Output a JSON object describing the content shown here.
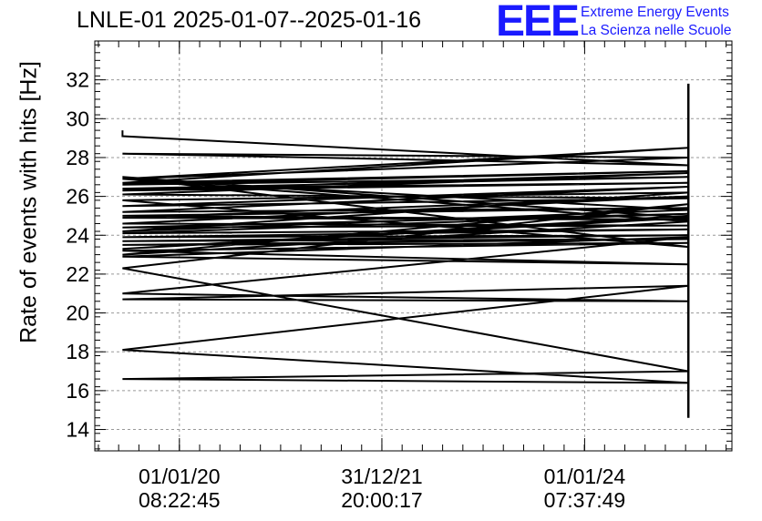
{
  "header": {
    "title": "LNLE-01 2025-01-07--2025-01-16",
    "logo_text": "EEE",
    "org_line1": "Extreme Energy Events",
    "org_line2": "La Scienza nelle Scuole",
    "accent_color": "#1a1aff"
  },
  "chart_data": {
    "type": "line",
    "title": "LNLE-01 2025-01-07--2025-01-16",
    "xlabel": "",
    "ylabel": "Rate of events with hits [Hz]",
    "ylim": [
      12.9,
      34
    ],
    "yticks": [
      14,
      16,
      18,
      20,
      22,
      24,
      26,
      28,
      30,
      32
    ],
    "xticks": [
      {
        "date": "01/01/20",
        "time": "08:22:45"
      },
      {
        "date": "31/12/21",
        "time": "20:00:17"
      },
      {
        "date": "01/01/24",
        "time": "07:37:49"
      }
    ],
    "xlim": [
      "2019-03-02",
      "2025-06-15"
    ],
    "grid": true,
    "line_color": "#000000",
    "series": [
      {
        "x": [
          "2019-06-10",
          "2019-06-10",
          "2025-01-09",
          "2019-06-10",
          "2025-01-09",
          "2019-06-10",
          "2025-01-09",
          "2019-06-10",
          "2025-01-09",
          "2019-06-10",
          "2025-01-09",
          "2019-06-10",
          "2025-01-09",
          "2019-06-10",
          "2025-01-09",
          "2019-06-10",
          "2025-01-09",
          "2019-06-10",
          "2025-01-09",
          "2019-06-10",
          "2025-01-09",
          "2019-06-10",
          "2025-01-09",
          "2019-06-10",
          "2025-01-09",
          "2019-06-10",
          "2025-01-09",
          "2019-06-10",
          "2025-01-09",
          "2019-06-10",
          "2025-01-09",
          "2019-06-10",
          "2025-01-09",
          "2019-06-10",
          "2025-01-09",
          "2019-06-10",
          "2025-01-09",
          "2019-06-10",
          "2025-01-09",
          "2019-06-10",
          "2025-01-09",
          "2019-06-10",
          "2025-01-09",
          "2019-06-10",
          "2025-01-09",
          "2019-06-10",
          "2025-01-09",
          "2019-06-10",
          "2025-01-09",
          "2019-06-10",
          "2025-01-09",
          "2019-06-10",
          "2025-01-09",
          "2019-06-10",
          "2025-01-09",
          "2019-06-10",
          "2025-01-09",
          "2019-06-10",
          "2025-01-09",
          "2019-06-10",
          "2025-01-09",
          "2019-06-10",
          "2025-01-09"
        ],
        "y": [
          29.4,
          29.1,
          27.6,
          28.2,
          28.0,
          26.9,
          28.5,
          26.7,
          27.3,
          26.6,
          27.0,
          26.4,
          26.7,
          26.3,
          27.2,
          26.1,
          25.9,
          25.5,
          26.5,
          25.2,
          25.4,
          25.0,
          24.8,
          24.9,
          26.0,
          24.6,
          24.5,
          24.4,
          25.1,
          24.1,
          24.3,
          23.9,
          24.0,
          23.7,
          23.8,
          23.5,
          23.6,
          23.2,
          22.5,
          22.9,
          23.9,
          21.0,
          20.6,
          20.7,
          21.4,
          18.1,
          16.4,
          16.6,
          17.0,
          22.3,
          25.6,
          23.0,
          24.7,
          26.9,
          25.3,
          24.2,
          26.2,
          25.8,
          23.4,
          27.0,
          24.9,
          23.3,
          25.0
        ]
      }
    ],
    "end_spike": {
      "x": "2025-01-09",
      "y_min": 14.6,
      "y_max": 31.8
    }
  }
}
